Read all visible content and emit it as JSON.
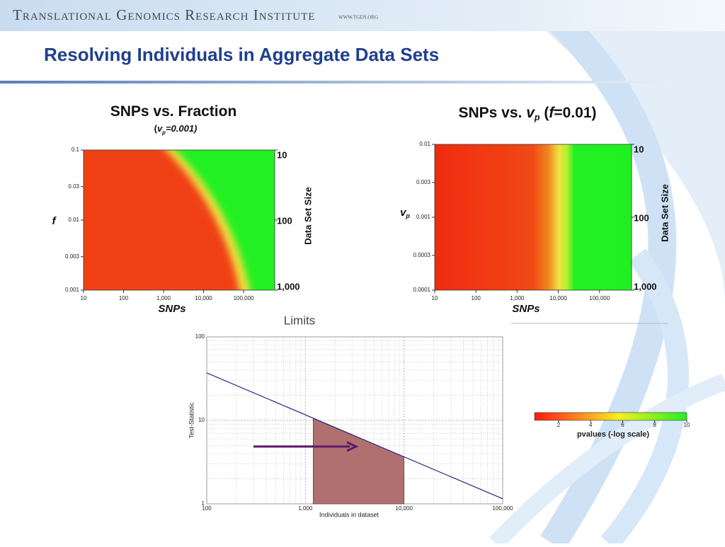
{
  "header": {
    "institute": "Translational Genomics Research Institute",
    "url": "www.tgen.org"
  },
  "title": "Resolving Individuals in Aggregate Data Sets",
  "plots": [
    {
      "type": "heatmap",
      "title_parts": [
        "SNPs vs. Fraction"
      ],
      "subtitle_parts": [
        "(",
        "v",
        "p",
        "=0.001)"
      ],
      "xlim": [
        10,
        600000
      ],
      "xticks": [
        10,
        100,
        {
          "value": 1000,
          "label": "1,000"
        },
        {
          "value": 10000,
          "label": "10,000"
        },
        {
          "value": 100000,
          "label": "100,000"
        }
      ],
      "ylim": [
        0.001,
        0.1
      ],
      "yticks": [
        0.001,
        0.003,
        0.01,
        0.03,
        0.1
      ],
      "x_label": "SNPs",
      "y_label_parts": [
        "f"
      ],
      "y2_label": "Data Set Size",
      "y2lim": [
        10,
        1000
      ],
      "y2ticks": [
        10,
        100,
        {
          "value": 1000,
          "label": "1,000"
        }
      ]
    },
    {
      "type": "heatmap",
      "title_parts": [
        "SNPs vs. ",
        "v",
        "p",
        " (",
        "f",
        "=0.01)"
      ],
      "xlim": [
        10,
        600000
      ],
      "xticks": [
        10,
        100,
        {
          "value": 1000,
          "label": "1,000"
        },
        {
          "value": 10000,
          "label": "10,000"
        },
        {
          "value": 100000,
          "label": "100,000"
        }
      ],
      "ylim": [
        0.0001,
        0.01
      ],
      "yticks": [
        0.0001,
        0.0003,
        0.001,
        0.003,
        0.01
      ],
      "x_label": "SNPs",
      "y_label_parts": [
        "v",
        "p"
      ],
      "y2_label": "Data Set Size",
      "y2lim": [
        10,
        1000
      ],
      "y2ticks": [
        10,
        100,
        {
          "value": 1000,
          "label": "1,000"
        }
      ]
    },
    {
      "type": "line",
      "title": "Limits",
      "log_scale": true,
      "grid": true,
      "xlim": [
        100,
        100000
      ],
      "xticks": [
        100,
        {
          "value": 1000,
          "label": "1,000"
        },
        {
          "value": 10000,
          "label": "10,000"
        },
        {
          "value": 100000,
          "label": "100,000"
        }
      ],
      "ylim": [
        1,
        100
      ],
      "yticks": [
        1,
        10,
        100
      ],
      "x_label": "Individuals in dataset",
      "y_label": "Test-Statistic",
      "line": {
        "color": "#2a2a8a",
        "x": [
          100,
          100000
        ],
        "values": [
          37,
          1.15
        ]
      },
      "area": {
        "color": "#b07070",
        "x": [
          1200,
          10000
        ],
        "values": [
          10.5,
          3.65
        ]
      }
    }
  ],
  "colorbar": {
    "label": "pvalues (-log scale)",
    "lim": [
      0.5,
      10
    ],
    "ticks": [
      2,
      4,
      6,
      8,
      10
    ]
  }
}
